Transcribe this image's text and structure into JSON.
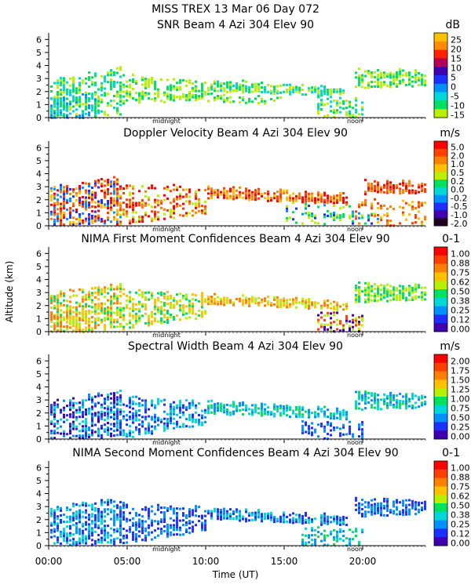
{
  "figure_title": "MISS TREX   13 Mar 06 Day 072",
  "y_axis_label": "Altitude (km)",
  "x_axis_label": "Time (UT)",
  "x_ticks": [
    "00:00",
    "05:00",
    "10:00",
    "15:00",
    "20:00"
  ],
  "marker_labels": [
    "midnight",
    "noon"
  ],
  "y_ticks": [
    "0",
    "1",
    "2",
    "3",
    "4",
    "5",
    "6"
  ],
  "chart_data": [
    {
      "type": "heatmap",
      "title": "SNR Beam 4 Azi 304 Elev 90",
      "units": "dB",
      "xlim": [
        0,
        24
      ],
      "ylim": [
        0,
        6.5
      ],
      "colorbar_ticks": [
        "25",
        "20",
        "15",
        "10",
        "5",
        "0",
        "-5",
        "-10",
        "-15"
      ],
      "colors": [
        "#ffc000",
        "#ff8c00",
        "#ff2000",
        "#b00058",
        "#4000b0",
        "#1c30ff",
        "#0090ff",
        "#00d8d8",
        "#00e060",
        "#b8f000"
      ],
      "layers": [
        {
          "t": [
            0,
            4.5
          ],
          "top": [
            2.8,
            3.9
          ],
          "bot": [
            0.1,
            0.3
          ],
          "c": [
            8,
            9,
            7
          ],
          "d": 0.55
        },
        {
          "t": [
            4.5,
            10
          ],
          "top": [
            3.3,
            2.9
          ],
          "bot": [
            1.0,
            1.5
          ],
          "c": [
            9,
            8
          ],
          "d": 0.45
        },
        {
          "t": [
            10,
            19
          ],
          "top": [
            2.9,
            2.3
          ],
          "bot": [
            2.1,
            1.7
          ],
          "c": [
            7,
            8,
            9
          ],
          "d": 0.75
        },
        {
          "t": [
            8,
            15
          ],
          "top": [
            1.9,
            1.5
          ],
          "bot": [
            1.4,
            1.1
          ],
          "c": [
            9,
            8
          ],
          "d": 0.5
        },
        {
          "t": [
            17,
            20
          ],
          "top": [
            1.6,
            1.4
          ],
          "bot": [
            0.1,
            0.1
          ],
          "c": [
            8,
            9,
            7
          ],
          "d": 0.55
        },
        {
          "t": [
            19.5,
            24
          ],
          "top": [
            3.7,
            3.6
          ],
          "bot": [
            2.3,
            2.5
          ],
          "c": [
            9,
            8
          ],
          "d": 0.65
        },
        {
          "t": [
            0,
            3
          ],
          "top": [
            1.5,
            1.8
          ],
          "bot": [
            0.05,
            0.05
          ],
          "c": [
            7,
            6,
            8
          ],
          "d": 0.6
        }
      ]
    },
    {
      "type": "heatmap",
      "title": "Doppler Velocity Beam 4 Azi 304 Elev 90",
      "units": "m/s",
      "xlim": [
        0,
        24
      ],
      "ylim": [
        0,
        6.5
      ],
      "colorbar_ticks": [
        "5.0",
        "2.0",
        "1.0",
        "0.5",
        "0.2",
        "0.0",
        "-0.2",
        "-0.5",
        "-1.0",
        "-2.0"
      ],
      "colors": [
        "#ff0000",
        "#ff4000",
        "#ff8000",
        "#ffc000",
        "#b8f000",
        "#00e060",
        "#00d8d8",
        "#0090ff",
        "#1c30ff",
        "#4000b0",
        "#200020"
      ],
      "layers": [
        {
          "t": [
            0,
            4.5
          ],
          "top": [
            3.0,
            3.8
          ],
          "bot": [
            0.1,
            0.2
          ],
          "c": [
            0,
            1,
            2,
            7,
            8,
            3
          ],
          "d": 0.6
        },
        {
          "t": [
            4.5,
            10
          ],
          "top": [
            3.3,
            2.9
          ],
          "bot": [
            0.1,
            1.0
          ],
          "c": [
            0,
            1,
            2,
            4
          ],
          "d": 0.45
        },
        {
          "t": [
            10,
            19
          ],
          "top": [
            3.0,
            2.4
          ],
          "bot": [
            2.2,
            1.7
          ],
          "c": [
            0,
            1,
            2,
            3
          ],
          "d": 0.8
        },
        {
          "t": [
            15,
            21
          ],
          "top": [
            1.8,
            1.3
          ],
          "bot": [
            0.2,
            0.2
          ],
          "c": [
            7,
            8,
            5,
            4
          ],
          "d": 0.35
        },
        {
          "t": [
            20,
            24
          ],
          "top": [
            3.5,
            3.3
          ],
          "bot": [
            2.5,
            2.6
          ],
          "c": [
            0,
            1,
            2
          ],
          "d": 0.75
        },
        {
          "t": [
            19.5,
            24
          ],
          "top": [
            2.0,
            1.9
          ],
          "bot": [
            0.1,
            0.1
          ],
          "c": [
            1,
            2,
            3
          ],
          "d": 0.3
        }
      ]
    },
    {
      "type": "heatmap",
      "title": "NIMA First Moment Confidences Beam 4 Azi 304 Elev 90",
      "units": "0-1",
      "xlim": [
        0,
        24
      ],
      "ylim": [
        0,
        6.5
      ],
      "colorbar_ticks": [
        "1.00",
        "0.88",
        "0.75",
        "0.62",
        "0.50",
        "0.38",
        "0.25",
        "0.12",
        "0.00"
      ],
      "colors": [
        "#ff0000",
        "#ff4000",
        "#ff8000",
        "#ffc000",
        "#b8f000",
        "#00e060",
        "#00d8d8",
        "#0090ff",
        "#1c30ff",
        "#4000b0"
      ],
      "layers": [
        {
          "t": [
            0,
            4.5
          ],
          "top": [
            2.9,
            3.7
          ],
          "bot": [
            0.1,
            0.2
          ],
          "c": [
            4,
            5,
            3,
            2
          ],
          "d": 0.6
        },
        {
          "t": [
            4.5,
            10
          ],
          "top": [
            3.3,
            2.9
          ],
          "bot": [
            0.2,
            1.2
          ],
          "c": [
            4,
            3,
            5
          ],
          "d": 0.5
        },
        {
          "t": [
            10,
            19
          ],
          "top": [
            2.9,
            2.3
          ],
          "bot": [
            2.2,
            1.7
          ],
          "c": [
            3,
            2,
            4
          ],
          "d": 0.75
        },
        {
          "t": [
            17,
            20
          ],
          "top": [
            1.5,
            1.3
          ],
          "bot": [
            0.1,
            0.1
          ],
          "c": [
            9,
            1,
            4
          ],
          "d": 0.5
        },
        {
          "t": [
            19.5,
            24
          ],
          "top": [
            3.7,
            3.5
          ],
          "bot": [
            2.3,
            2.5
          ],
          "c": [
            4,
            5
          ],
          "d": 0.7
        },
        {
          "t": [
            0,
            3
          ],
          "top": [
            1.2,
            1.5
          ],
          "bot": [
            0.05,
            0.05
          ],
          "c": [
            3,
            2,
            4
          ],
          "d": 0.5
        }
      ]
    },
    {
      "type": "heatmap",
      "title": "Spectral Width Beam 4 Azi 304 Elev 90",
      "units": "m/s",
      "xlim": [
        0,
        24
      ],
      "ylim": [
        0,
        6.5
      ],
      "colorbar_ticks": [
        "2.00",
        "1.75",
        "1.50",
        "1.25",
        "1.00",
        "0.75",
        "0.50",
        "0.25",
        "0.00"
      ],
      "colors": [
        "#ff0000",
        "#ff4000",
        "#ff8000",
        "#ffc000",
        "#b8f000",
        "#00e060",
        "#00d8d8",
        "#0090ff",
        "#1c30ff",
        "#4000b0"
      ],
      "layers": [
        {
          "t": [
            0,
            4.5
          ],
          "top": [
            2.9,
            3.7
          ],
          "bot": [
            0.1,
            0.2
          ],
          "c": [
            8,
            7,
            6,
            9
          ],
          "d": 0.6
        },
        {
          "t": [
            4.5,
            10
          ],
          "top": [
            3.3,
            2.9
          ],
          "bot": [
            0.1,
            1.2
          ],
          "c": [
            8,
            7,
            6
          ],
          "d": 0.5
        },
        {
          "t": [
            10,
            19
          ],
          "top": [
            2.9,
            2.3
          ],
          "bot": [
            2.0,
            1.6
          ],
          "c": [
            6,
            5,
            7
          ],
          "d": 0.7
        },
        {
          "t": [
            16,
            20
          ],
          "top": [
            1.4,
            1.2
          ],
          "bot": [
            0.1,
            0.1
          ],
          "c": [
            8,
            7
          ],
          "d": 0.4
        },
        {
          "t": [
            19.5,
            24
          ],
          "top": [
            3.6,
            3.4
          ],
          "bot": [
            2.3,
            2.5
          ],
          "c": [
            6,
            5,
            7
          ],
          "d": 0.65
        }
      ]
    },
    {
      "type": "heatmap",
      "title": "NIMA Second Moment Confidences Beam 4 Azi 304 Elev 90",
      "units": "0-1",
      "xlim": [
        0,
        24
      ],
      "ylim": [
        0,
        6.5
      ],
      "colorbar_ticks": [
        "1.00",
        "0.88",
        "0.75",
        "0.62",
        "0.50",
        "0.38",
        "0.25",
        "0.12",
        "0.00"
      ],
      "colors": [
        "#ff0000",
        "#ff4000",
        "#ff8000",
        "#ffc000",
        "#b8f000",
        "#00e060",
        "#00d8d8",
        "#0090ff",
        "#1c30ff",
        "#4000b0"
      ],
      "layers": [
        {
          "t": [
            0,
            4.5
          ],
          "top": [
            2.9,
            3.7
          ],
          "bot": [
            0.1,
            0.2
          ],
          "c": [
            8,
            7,
            6
          ],
          "d": 0.6
        },
        {
          "t": [
            4.5,
            10
          ],
          "top": [
            3.3,
            2.9
          ],
          "bot": [
            0.2,
            1.2
          ],
          "c": [
            8,
            7
          ],
          "d": 0.5
        },
        {
          "t": [
            10,
            19
          ],
          "top": [
            2.9,
            2.3
          ],
          "bot": [
            2.1,
            1.6
          ],
          "c": [
            8,
            7,
            6
          ],
          "d": 0.7
        },
        {
          "t": [
            16,
            20
          ],
          "top": [
            1.4,
            1.2
          ],
          "bot": [
            0.1,
            0.1
          ],
          "c": [
            6,
            7,
            5
          ],
          "d": 0.45
        },
        {
          "t": [
            19.5,
            24
          ],
          "top": [
            3.6,
            3.4
          ],
          "bot": [
            2.3,
            2.5
          ],
          "c": [
            8,
            7
          ],
          "d": 0.7
        }
      ]
    }
  ]
}
